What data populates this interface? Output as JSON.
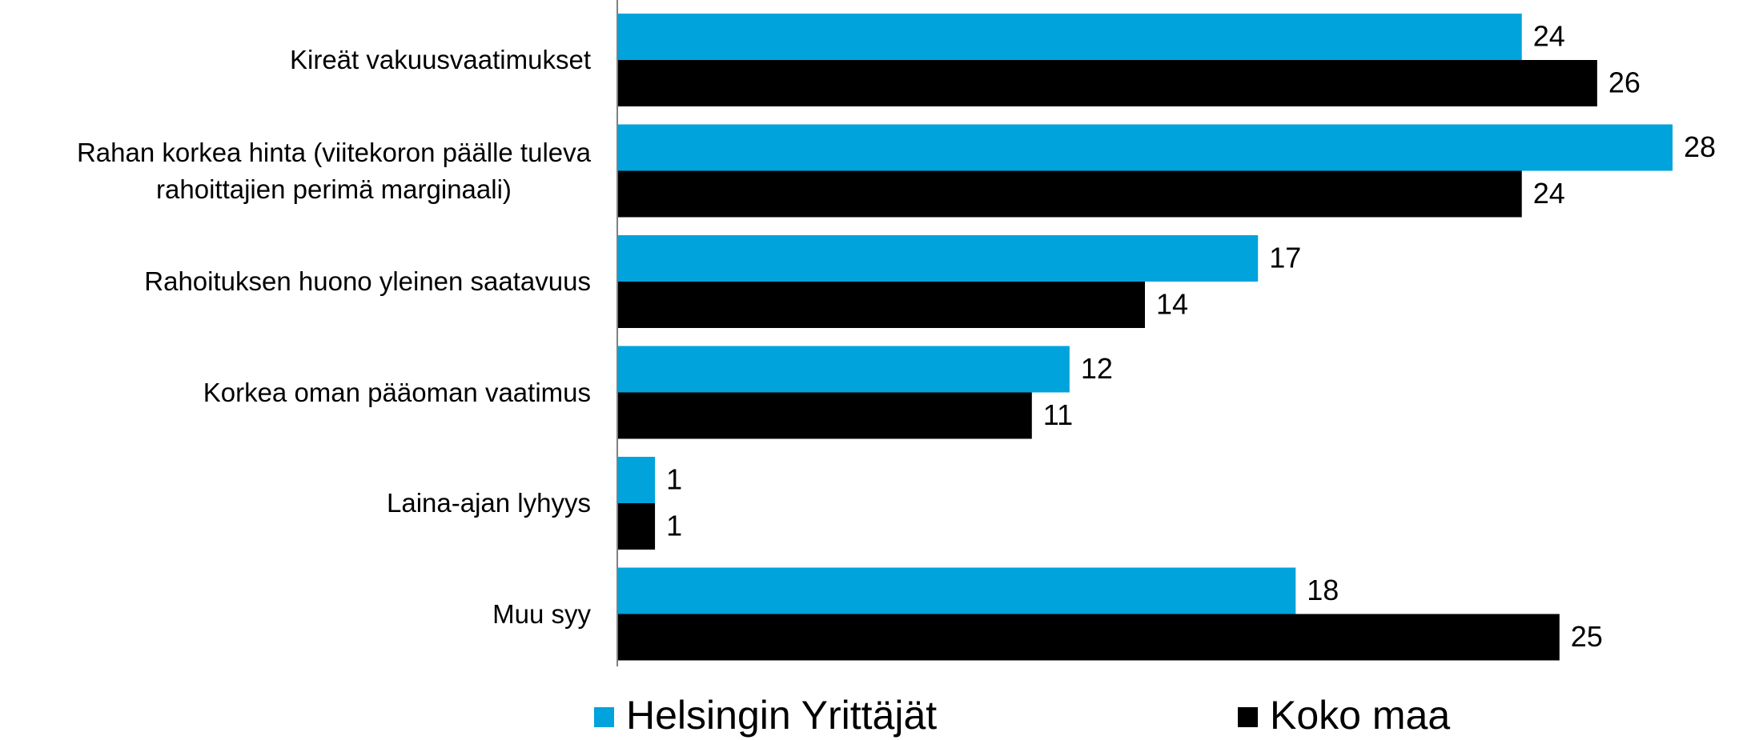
{
  "chart_data": {
    "type": "bar",
    "orientation": "horizontal",
    "categories": [
      "Kireät vakuusvaatimukset",
      "Rahan korkea hinta (viitekoron päälle tuleva\nrahoittajien perimä marginaali)",
      "Rahoituksen huono yleinen saatavuus",
      "Korkea oman pääoman vaatimus",
      "Laina-ajan lyhyys",
      "Muu syy"
    ],
    "series": [
      {
        "name": "Helsingin Yrittäjät",
        "color": "#00a3dc",
        "values": [
          24,
          28,
          17,
          12,
          1,
          18
        ]
      },
      {
        "name": "Koko maa",
        "color": "#000000",
        "values": [
          26,
          24,
          14,
          11,
          1,
          25
        ]
      }
    ],
    "legend": "bottom"
  }
}
